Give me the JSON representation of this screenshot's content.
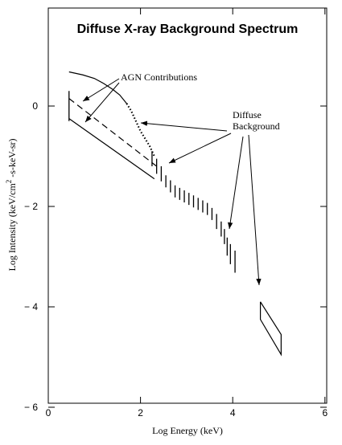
{
  "chart_data": {
    "type": "line",
    "title": "Diffuse X-ray Background Spectrum",
    "xlabel": "Log Energy (keV)",
    "ylabel_prefix": "Log Intensity  (keV/cm",
    "ylabel_sup": "2",
    "ylabel_suffix": " -s-keV-sr)",
    "xlim": [
      0,
      6
    ],
    "ylim": [
      -6,
      2
    ],
    "xticks": [
      0,
      2,
      4,
      6
    ],
    "xtick_labels": [
      "0",
      "2",
      "4",
      "6"
    ],
    "yticks": [
      0,
      -2,
      -4,
      -6
    ],
    "ytick_labels": [
      "0",
      "− 2",
      "− 4",
      "− 6"
    ],
    "grid": false,
    "annotations": {
      "agn": "AGN Contributions",
      "diffuse_line1": "Diffuse",
      "diffuse_line2": "Background"
    },
    "series": [
      {
        "style": "solid-curve",
        "x": [
          0.45,
          0.75,
          1.0,
          1.2,
          1.4,
          1.55,
          1.7
        ],
        "y": [
          0.68,
          0.62,
          0.55,
          0.45,
          0.33,
          0.22,
          0.05
        ]
      },
      {
        "style": "dotted",
        "x": [
          1.7,
          1.8,
          1.9,
          2.0,
          2.1,
          2.2,
          2.3
        ],
        "y": [
          0.05,
          -0.1,
          -0.3,
          -0.5,
          -0.65,
          -0.8,
          -1.0
        ]
      },
      {
        "style": "solid-line",
        "x": [
          0.45,
          2.3
        ],
        "y": [
          -0.25,
          -1.45
        ]
      },
      {
        "style": "dashed",
        "x": [
          0.45,
          2.35
        ],
        "y": [
          0.15,
          -1.2
        ]
      },
      {
        "style": "error-bars",
        "x": [
          0.45,
          2.25,
          2.35,
          2.45,
          2.55,
          2.65,
          2.75,
          2.85,
          2.95,
          3.05,
          3.15,
          3.25,
          3.35,
          3.45,
          3.55,
          3.65,
          3.75,
          3.82,
          3.88,
          3.95,
          4.05
        ],
        "y": [
          0.0,
          -1.05,
          -1.2,
          -1.35,
          -1.5,
          -1.6,
          -1.7,
          -1.75,
          -1.8,
          -1.85,
          -1.9,
          -1.95,
          -2.0,
          -2.05,
          -2.15,
          -2.3,
          -2.45,
          -2.6,
          -2.8,
          -2.95,
          -3.1
        ],
        "err": [
          0.3,
          0.15,
          0.15,
          0.15,
          0.12,
          0.12,
          0.12,
          0.12,
          0.12,
          0.12,
          0.12,
          0.12,
          0.12,
          0.12,
          0.12,
          0.15,
          0.15,
          0.15,
          0.18,
          0.2,
          0.22
        ]
      },
      {
        "style": "bowtie",
        "x": [
          4.6,
          5.05,
          5.05,
          4.6,
          4.6
        ],
        "y": [
          -3.9,
          -4.55,
          -4.95,
          -4.25,
          -3.9
        ]
      }
    ]
  }
}
